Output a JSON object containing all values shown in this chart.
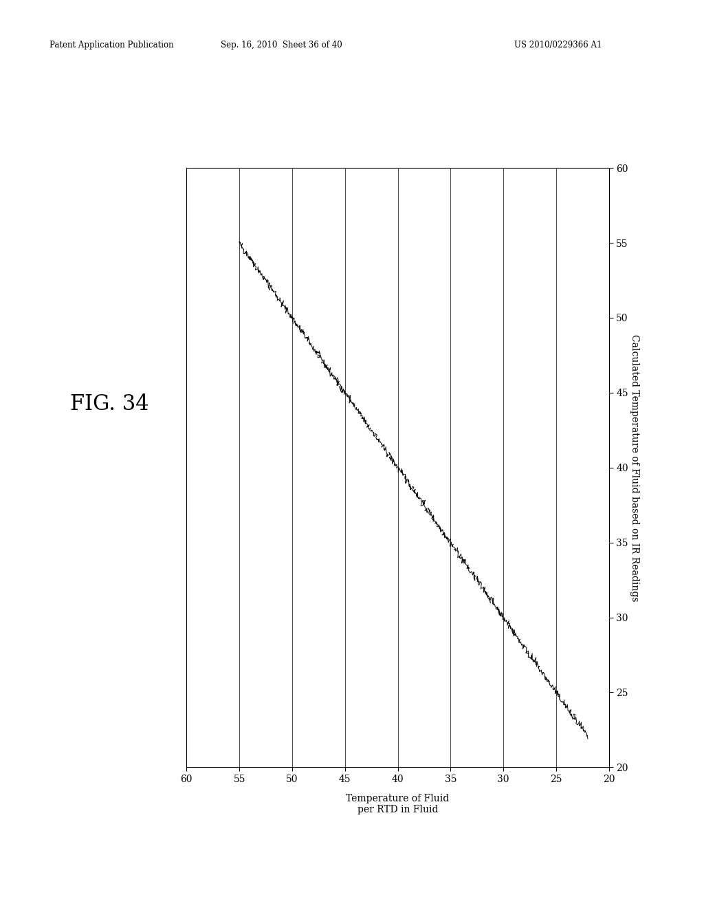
{
  "title": "FIG. 34",
  "xlabel": "Temperature of Fluid\nper RTD in Fluid",
  "ylabel": "Calculated Temperature of Fluid based on IR Readings",
  "header_left": "Patent Application Publication",
  "header_center": "Sep. 16, 2010  Sheet 36 of 40",
  "header_right": "US 2010/0229366 A1",
  "x_min": 20,
  "x_max": 60,
  "y_min": 20,
  "y_max": 60,
  "x_ticks": [
    60,
    55,
    50,
    45,
    40,
    35,
    30,
    25,
    20
  ],
  "y_ticks": [
    20,
    25,
    30,
    35,
    40,
    45,
    50,
    55,
    60
  ],
  "line_color": "#000000",
  "background_color": "#ffffff",
  "noise_scale": 0.12,
  "num_points": 900
}
